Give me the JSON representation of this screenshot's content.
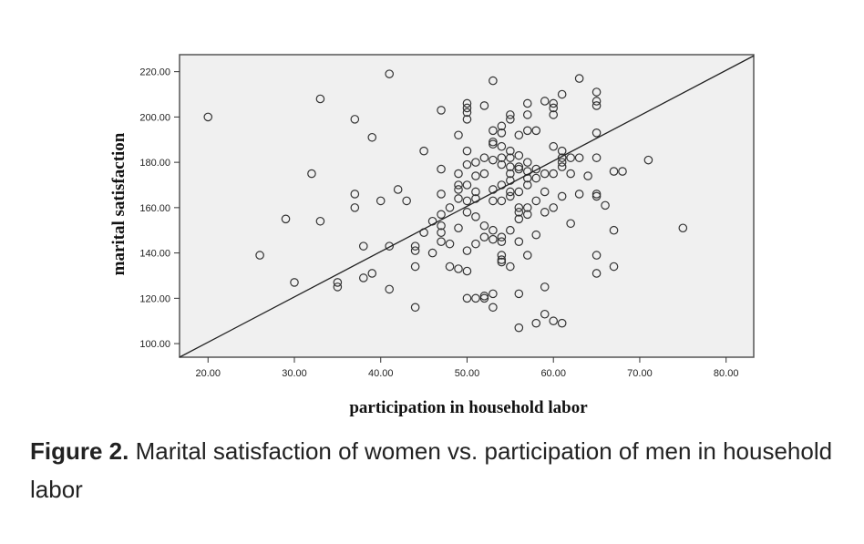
{
  "chart_data": {
    "type": "scatter",
    "xlabel": "participation in household  labor",
    "ylabel": "marital satisfaction",
    "xlim": [
      16.7,
      83.2
    ],
    "ylim": [
      94,
      227.5
    ],
    "xticks": [
      "20.00",
      "30.00",
      "40.00",
      "50.00",
      "60.00",
      "70.00",
      "80.00"
    ],
    "yticks": [
      "100.00",
      "120.00",
      "140.00",
      "160.00",
      "180.00",
      "200.00",
      "220.00"
    ],
    "grid": false,
    "fit_line": {
      "slope": 2.0,
      "intercept": 60.6
    },
    "points": [
      [
        20,
        200
      ],
      [
        26,
        139
      ],
      [
        29,
        155
      ],
      [
        30,
        127
      ],
      [
        32,
        175
      ],
      [
        33,
        208
      ],
      [
        33,
        154
      ],
      [
        35,
        127
      ],
      [
        35,
        125
      ],
      [
        37,
        199
      ],
      [
        37,
        166
      ],
      [
        37,
        160
      ],
      [
        38,
        143
      ],
      [
        38,
        129
      ],
      [
        39,
        131
      ],
      [
        39,
        191
      ],
      [
        40,
        163
      ],
      [
        41,
        219
      ],
      [
        41,
        143
      ],
      [
        41,
        124
      ],
      [
        42,
        168
      ],
      [
        43,
        163
      ],
      [
        44,
        143
      ],
      [
        44,
        141
      ],
      [
        44,
        134
      ],
      [
        44,
        116
      ],
      [
        45,
        185
      ],
      [
        45,
        149
      ],
      [
        46,
        154
      ],
      [
        46,
        140
      ],
      [
        47,
        203
      ],
      [
        47,
        177
      ],
      [
        47,
        166
      ],
      [
        47,
        157
      ],
      [
        47,
        152
      ],
      [
        47,
        149
      ],
      [
        47,
        145
      ],
      [
        48,
        160
      ],
      [
        48,
        144
      ],
      [
        48,
        134
      ],
      [
        49,
        192
      ],
      [
        49,
        175
      ],
      [
        49,
        170
      ],
      [
        49,
        168
      ],
      [
        49,
        164
      ],
      [
        49,
        151
      ],
      [
        49,
        133
      ],
      [
        50,
        206
      ],
      [
        50,
        204
      ],
      [
        50,
        202
      ],
      [
        50,
        199
      ],
      [
        50,
        185
      ],
      [
        50,
        179
      ],
      [
        50,
        170
      ],
      [
        50,
        163
      ],
      [
        50,
        158
      ],
      [
        50,
        141
      ],
      [
        50,
        132
      ],
      [
        50,
        120
      ],
      [
        51,
        180
      ],
      [
        51,
        174
      ],
      [
        51,
        167
      ],
      [
        51,
        164
      ],
      [
        51,
        156
      ],
      [
        51,
        144
      ],
      [
        51,
        120
      ],
      [
        52,
        205
      ],
      [
        52,
        182
      ],
      [
        52,
        175
      ],
      [
        52,
        152
      ],
      [
        52,
        147
      ],
      [
        52,
        121
      ],
      [
        52,
        120
      ],
      [
        53,
        216
      ],
      [
        53,
        194
      ],
      [
        53,
        189
      ],
      [
        53,
        188
      ],
      [
        53,
        181
      ],
      [
        53,
        168
      ],
      [
        53,
        163
      ],
      [
        53,
        150
      ],
      [
        53,
        146
      ],
      [
        53,
        122
      ],
      [
        53,
        116
      ],
      [
        54,
        196
      ],
      [
        54,
        193
      ],
      [
        54,
        187
      ],
      [
        54,
        182
      ],
      [
        54,
        179
      ],
      [
        54,
        170
      ],
      [
        54,
        163
      ],
      [
        54,
        147
      ],
      [
        54,
        145
      ],
      [
        54,
        139
      ],
      [
        54,
        137
      ],
      [
        54,
        136
      ],
      [
        55,
        201
      ],
      [
        55,
        199
      ],
      [
        55,
        185
      ],
      [
        55,
        182
      ],
      [
        55,
        178
      ],
      [
        55,
        175
      ],
      [
        55,
        172
      ],
      [
        55,
        167
      ],
      [
        55,
        165
      ],
      [
        55,
        150
      ],
      [
        55,
        134
      ],
      [
        56,
        192
      ],
      [
        56,
        183
      ],
      [
        56,
        178
      ],
      [
        56,
        177
      ],
      [
        56,
        167
      ],
      [
        56,
        160
      ],
      [
        56,
        158
      ],
      [
        56,
        155
      ],
      [
        56,
        145
      ],
      [
        56,
        122
      ],
      [
        56,
        107
      ],
      [
        57,
        206
      ],
      [
        57,
        201
      ],
      [
        57,
        194
      ],
      [
        57,
        180
      ],
      [
        57,
        176
      ],
      [
        57,
        173
      ],
      [
        57,
        170
      ],
      [
        57,
        160
      ],
      [
        57,
        157
      ],
      [
        57,
        139
      ],
      [
        58,
        194
      ],
      [
        58,
        177
      ],
      [
        58,
        173
      ],
      [
        58,
        163
      ],
      [
        58,
        148
      ],
      [
        58,
        109
      ],
      [
        59,
        207
      ],
      [
        59,
        175
      ],
      [
        59,
        167
      ],
      [
        59,
        158
      ],
      [
        59,
        125
      ],
      [
        59,
        113
      ],
      [
        60,
        206
      ],
      [
        60,
        204
      ],
      [
        60,
        201
      ],
      [
        60,
        187
      ],
      [
        60,
        175
      ],
      [
        60,
        160
      ],
      [
        60,
        110
      ],
      [
        61,
        210
      ],
      [
        61,
        185
      ],
      [
        61,
        182
      ],
      [
        61,
        180
      ],
      [
        61,
        178
      ],
      [
        61,
        165
      ],
      [
        61,
        109
      ],
      [
        62,
        182
      ],
      [
        62,
        175
      ],
      [
        62,
        153
      ],
      [
        63,
        217
      ],
      [
        63,
        182
      ],
      [
        63,
        166
      ],
      [
        64,
        174
      ],
      [
        65,
        211
      ],
      [
        65,
        207
      ],
      [
        65,
        205
      ],
      [
        65,
        193
      ],
      [
        65,
        182
      ],
      [
        65,
        166
      ],
      [
        65,
        165
      ],
      [
        65,
        139
      ],
      [
        65,
        131
      ],
      [
        66,
        161
      ],
      [
        67,
        176
      ],
      [
        67,
        150
      ],
      [
        67,
        134
      ],
      [
        68,
        176
      ],
      [
        71,
        181
      ],
      [
        75,
        151
      ]
    ],
    "colors": {
      "plot_bg": "#f0f0f0",
      "marker": "#333333",
      "line": "#222222"
    }
  },
  "caption": {
    "label": "Figure 2.",
    "text": " Marital satisfaction of women vs. participation of men in household labor"
  }
}
